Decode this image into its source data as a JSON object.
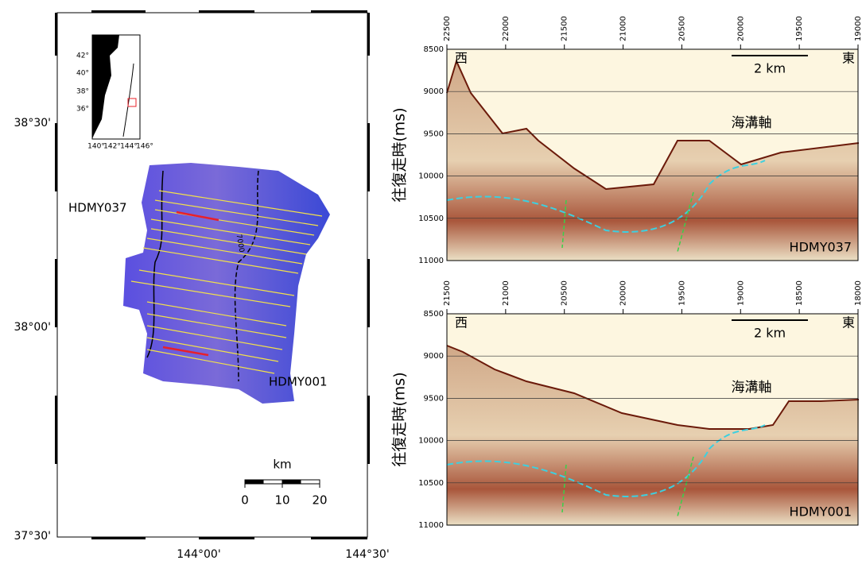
{
  "map": {
    "lat_labels": [
      "38°30'",
      "38°00'",
      "37°30'"
    ],
    "lon_labels": [
      "144°00'",
      "144°30'"
    ],
    "line_labels": [
      "HDMY037",
      "HDMY001"
    ],
    "contour_label": "7000",
    "scale": {
      "unit": "km",
      "ticks": [
        0,
        10,
        20
      ]
    },
    "inset": {
      "lat_labels": [
        "42°",
        "40°",
        "38°",
        "36°"
      ],
      "lon_labels": [
        "140°",
        "142°",
        "144°",
        "146°"
      ]
    }
  },
  "profiles": [
    {
      "line": "HDMY037",
      "xlim": [
        22500,
        19000
      ],
      "xticks": [
        22500,
        22000,
        21500,
        21000,
        20500,
        20000,
        19500,
        19000
      ],
      "ylim": [
        8500,
        11000
      ],
      "yticks": [
        8500,
        9000,
        9500,
        10000,
        10500,
        11000
      ],
      "west": "西",
      "east": "東",
      "scale_label": "2 km",
      "annotation": "海溝軸",
      "ylabel": "往復走時(ms)"
    },
    {
      "line": "HDMY001",
      "xlim": [
        21500,
        18000
      ],
      "xticks": [
        21500,
        21000,
        20500,
        20000,
        19500,
        19000,
        18500,
        18000
      ],
      "ylim": [
        8500,
        11000
      ],
      "yticks": [
        8500,
        9000,
        9500,
        10000,
        10500,
        11000
      ],
      "west": "西",
      "east": "東",
      "scale_label": "2 km",
      "annotation": "海溝軸",
      "ylabel": "往復走時(ms)"
    }
  ]
}
